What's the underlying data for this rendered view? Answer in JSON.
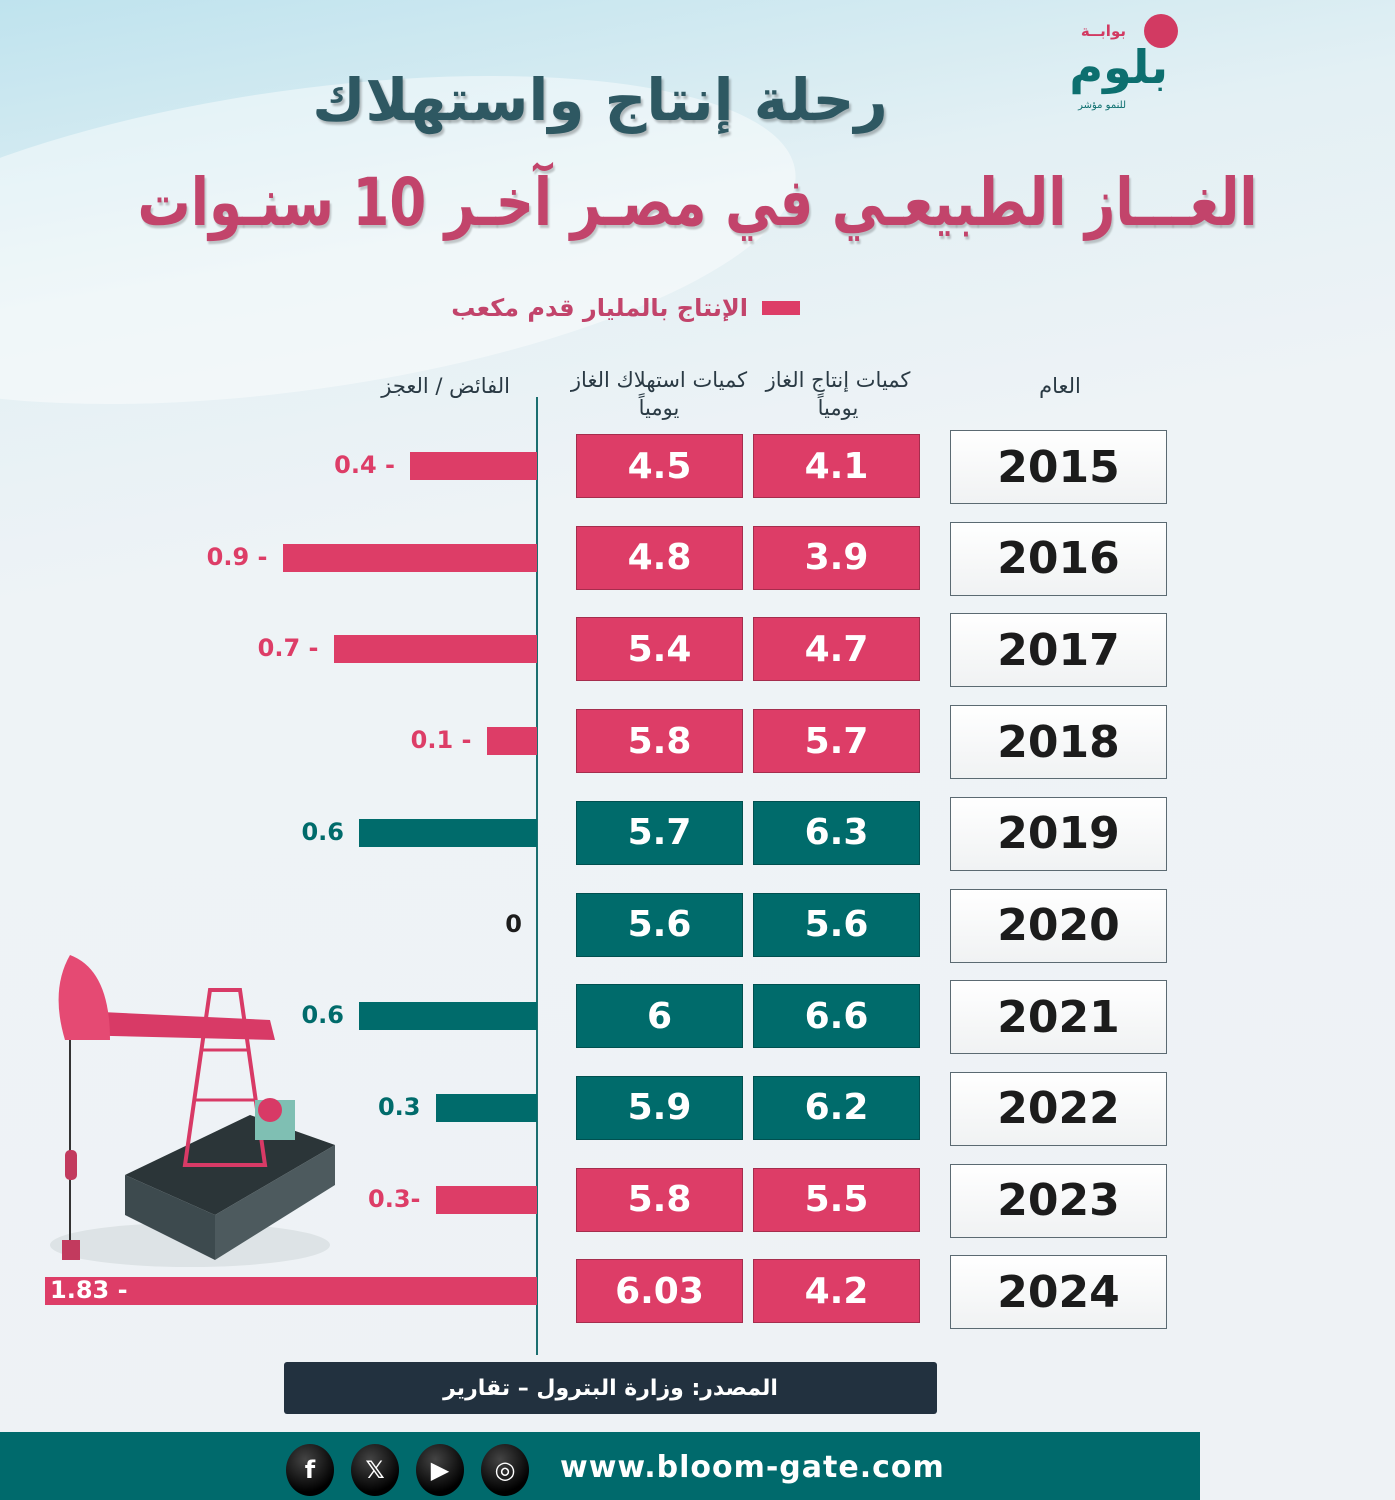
{
  "logo": {
    "top": "بوابــة",
    "main": "بلوم",
    "sub": "للنمو مؤشر"
  },
  "title": {
    "line1": "رحلة إنتاج واستهلاك",
    "line2": "الغـــاز الطبيعـي في مصـر آخـر 10 سنـوات"
  },
  "legend": {
    "label": "الإنتاج بالمليار قدم مكعب"
  },
  "headers": {
    "year": "العام",
    "production": "كميات إنتاج الغاز يومياً",
    "consumption": "كميات استهلاك الغاز يومياً",
    "balance": "الفائض / العجز"
  },
  "colors": {
    "deficit": "#dd3d67",
    "surplus": "#006b6b"
  },
  "chart_data": {
    "type": "table",
    "title": "رحلة إنتاج واستهلاك الغاز الطبيعي في مصر آخر 10 سنوات",
    "unit": "الإنتاج بالمليار قدم مكعب",
    "columns": [
      "العام",
      "كميات إنتاج الغاز يومياً",
      "كميات استهلاك الغاز يومياً",
      "الفائض / العجز"
    ],
    "rows": [
      {
        "year": "2015",
        "production": "4.1",
        "consumption": "4.5",
        "balance": -0.4,
        "balance_label": "0.4 -"
      },
      {
        "year": "2016",
        "production": "3.9",
        "consumption": "4.8",
        "balance": -0.9,
        "balance_label": "0.9 -"
      },
      {
        "year": "2017",
        "production": "4.7",
        "consumption": "5.4",
        "balance": -0.7,
        "balance_label": "0.7 -"
      },
      {
        "year": "2018",
        "production": "5.7",
        "consumption": "5.8",
        "balance": -0.1,
        "balance_label": "0.1 -"
      },
      {
        "year": "2019",
        "production": "6.3",
        "consumption": "5.7",
        "balance": 0.6,
        "balance_label": "0.6"
      },
      {
        "year": "2020",
        "production": "5.6",
        "consumption": "5.6",
        "balance": 0,
        "balance_label": "0"
      },
      {
        "year": "2021",
        "production": "6.6",
        "consumption": "6",
        "balance": 0.6,
        "balance_label": "0.6"
      },
      {
        "year": "2022",
        "production": "6.2",
        "consumption": "5.9",
        "balance": 0.3,
        "balance_label": "0.3"
      },
      {
        "year": "2023",
        "production": "5.5",
        "consumption": "5.8",
        "balance": -0.3,
        "balance_label": "0.3-"
      },
      {
        "year": "2024",
        "production": "4.2",
        "consumption": "6.03",
        "balance": -1.83,
        "balance_label": "1.83 -"
      }
    ]
  },
  "source": "المصدر: وزارة البترول – تقارير",
  "footer": {
    "url": "www.bloom-gate.com",
    "social": [
      "f",
      "𝕏",
      "▶",
      "◎"
    ]
  }
}
